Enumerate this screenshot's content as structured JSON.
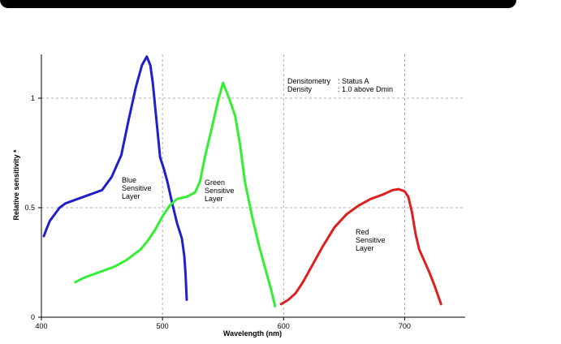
{
  "chart_data": {
    "type": "line",
    "title": "",
    "xlabel": "Wavelength (nm)",
    "ylabel": "Relative sensitivity *",
    "xlim": [
      400,
      750
    ],
    "ylim": [
      0,
      1.2
    ],
    "x_ticks": [
      400,
      500,
      600,
      700
    ],
    "y_ticks": [
      0,
      0.5,
      1
    ],
    "x_tick_labels": [
      "400",
      "500",
      "600",
      "700"
    ],
    "y_tick_labels": [
      "0",
      "0.5",
      "1"
    ],
    "grid": "dashed at x ticks and y ticks",
    "note": {
      "line1_label": "Densitometry",
      "line1_value": ": Status A",
      "line2_label": "Density",
      "line2_value": ": 1.0 above  Dmin"
    },
    "series": [
      {
        "label": [
          "Blue",
          "Sensitive",
          "Layer"
        ],
        "color": "#1f1fcc",
        "points": [
          [
            402,
            0.37
          ],
          [
            404,
            0.4
          ],
          [
            407,
            0.44
          ],
          [
            411,
            0.47
          ],
          [
            415,
            0.5
          ],
          [
            420,
            0.52
          ],
          [
            430,
            0.54
          ],
          [
            440,
            0.56
          ],
          [
            450,
            0.58
          ],
          [
            458,
            0.64
          ],
          [
            466,
            0.74
          ],
          [
            472,
            0.9
          ],
          [
            478,
            1.05
          ],
          [
            483,
            1.15
          ],
          [
            487,
            1.19
          ],
          [
            490,
            1.15
          ],
          [
            492,
            1.07
          ],
          [
            495,
            0.9
          ],
          [
            498,
            0.73
          ],
          [
            501,
            0.68
          ],
          [
            504,
            0.62
          ],
          [
            508,
            0.52
          ],
          [
            512,
            0.43
          ],
          [
            516,
            0.36
          ],
          [
            518,
            0.28
          ],
          [
            519,
            0.2
          ],
          [
            520,
            0.08
          ]
        ]
      },
      {
        "label": [
          "Green",
          "Sensitive",
          "Layer"
        ],
        "color": "#33ee33",
        "points": [
          [
            428,
            0.16
          ],
          [
            435,
            0.18
          ],
          [
            445,
            0.2
          ],
          [
            460,
            0.23
          ],
          [
            470,
            0.26
          ],
          [
            482,
            0.31
          ],
          [
            488,
            0.35
          ],
          [
            494,
            0.4
          ],
          [
            500,
            0.46
          ],
          [
            506,
            0.51
          ],
          [
            512,
            0.54
          ],
          [
            520,
            0.55
          ],
          [
            527,
            0.57
          ],
          [
            531,
            0.62
          ],
          [
            535,
            0.73
          ],
          [
            541,
            0.87
          ],
          [
            546,
            0.99
          ],
          [
            550,
            1.07
          ],
          [
            555,
            1.0
          ],
          [
            560,
            0.92
          ],
          [
            564,
            0.79
          ],
          [
            568,
            0.62
          ],
          [
            574,
            0.46
          ],
          [
            580,
            0.32
          ],
          [
            586,
            0.2
          ],
          [
            590,
            0.12
          ],
          [
            593,
            0.05
          ]
        ]
      },
      {
        "label": [
          "Red",
          "Sensitive",
          "Layer"
        ],
        "color": "#dd1f1f",
        "points": [
          [
            598,
            0.06
          ],
          [
            604,
            0.08
          ],
          [
            610,
            0.11
          ],
          [
            616,
            0.16
          ],
          [
            624,
            0.24
          ],
          [
            632,
            0.32
          ],
          [
            642,
            0.41
          ],
          [
            652,
            0.47
          ],
          [
            662,
            0.51
          ],
          [
            672,
            0.54
          ],
          [
            682,
            0.56
          ],
          [
            690,
            0.58
          ],
          [
            695,
            0.585
          ],
          [
            700,
            0.575
          ],
          [
            703,
            0.55
          ],
          [
            706,
            0.48
          ],
          [
            709,
            0.38
          ],
          [
            712,
            0.31
          ],
          [
            716,
            0.26
          ],
          [
            720,
            0.21
          ],
          [
            725,
            0.14
          ],
          [
            730,
            0.06
          ]
        ]
      }
    ]
  },
  "colors": {
    "blue": "#1f1fcc",
    "green": "#33ee33",
    "red": "#dd1f1f",
    "grid": "#999999"
  }
}
